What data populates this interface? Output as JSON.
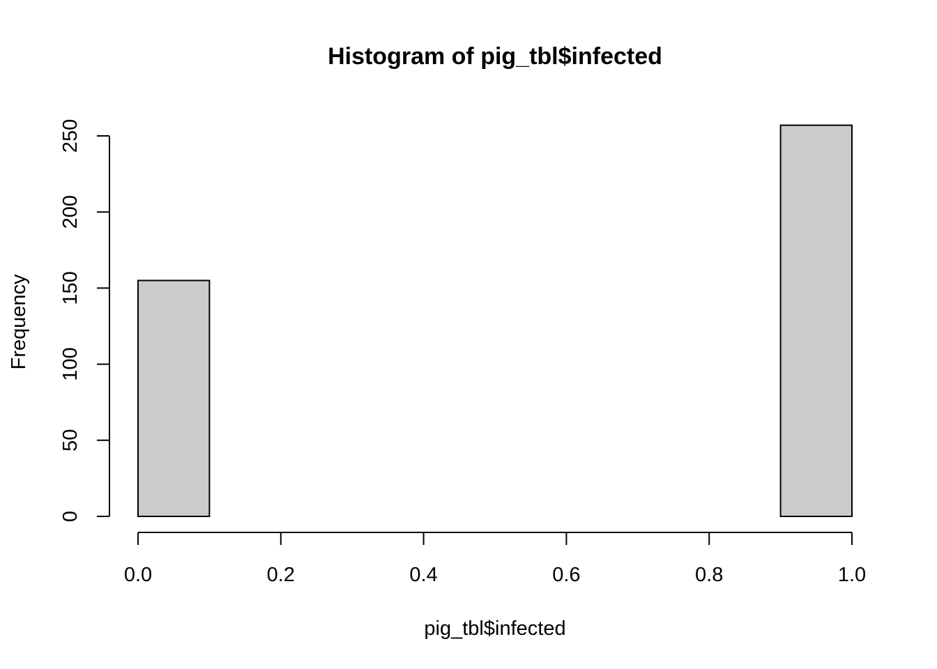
{
  "chart_data": {
    "type": "bar",
    "title": "Histogram of pig_tbl$infected",
    "xlabel": "pig_tbl$infected",
    "ylabel": "Frequency",
    "bins": [
      {
        "start": 0.0,
        "end": 0.1,
        "count": 155
      },
      {
        "start": 0.1,
        "end": 0.2,
        "count": 0
      },
      {
        "start": 0.2,
        "end": 0.3,
        "count": 0
      },
      {
        "start": 0.3,
        "end": 0.4,
        "count": 0
      },
      {
        "start": 0.4,
        "end": 0.5,
        "count": 0
      },
      {
        "start": 0.5,
        "end": 0.6,
        "count": 0
      },
      {
        "start": 0.6,
        "end": 0.7,
        "count": 0
      },
      {
        "start": 0.7,
        "end": 0.8,
        "count": 0
      },
      {
        "start": 0.8,
        "end": 0.9,
        "count": 0
      },
      {
        "start": 0.9,
        "end": 1.0,
        "count": 257
      }
    ],
    "xlim": [
      0.0,
      1.0
    ],
    "ylim": [
      0,
      257
    ],
    "x_ticks": [
      "0.0",
      "0.2",
      "0.4",
      "0.6",
      "0.8",
      "1.0"
    ],
    "y_ticks": [
      "0",
      "50",
      "100",
      "150",
      "200",
      "250"
    ],
    "bar_fill": "#cbcbcb",
    "bar_stroke": "#000000",
    "grid": false,
    "legend": "none"
  }
}
